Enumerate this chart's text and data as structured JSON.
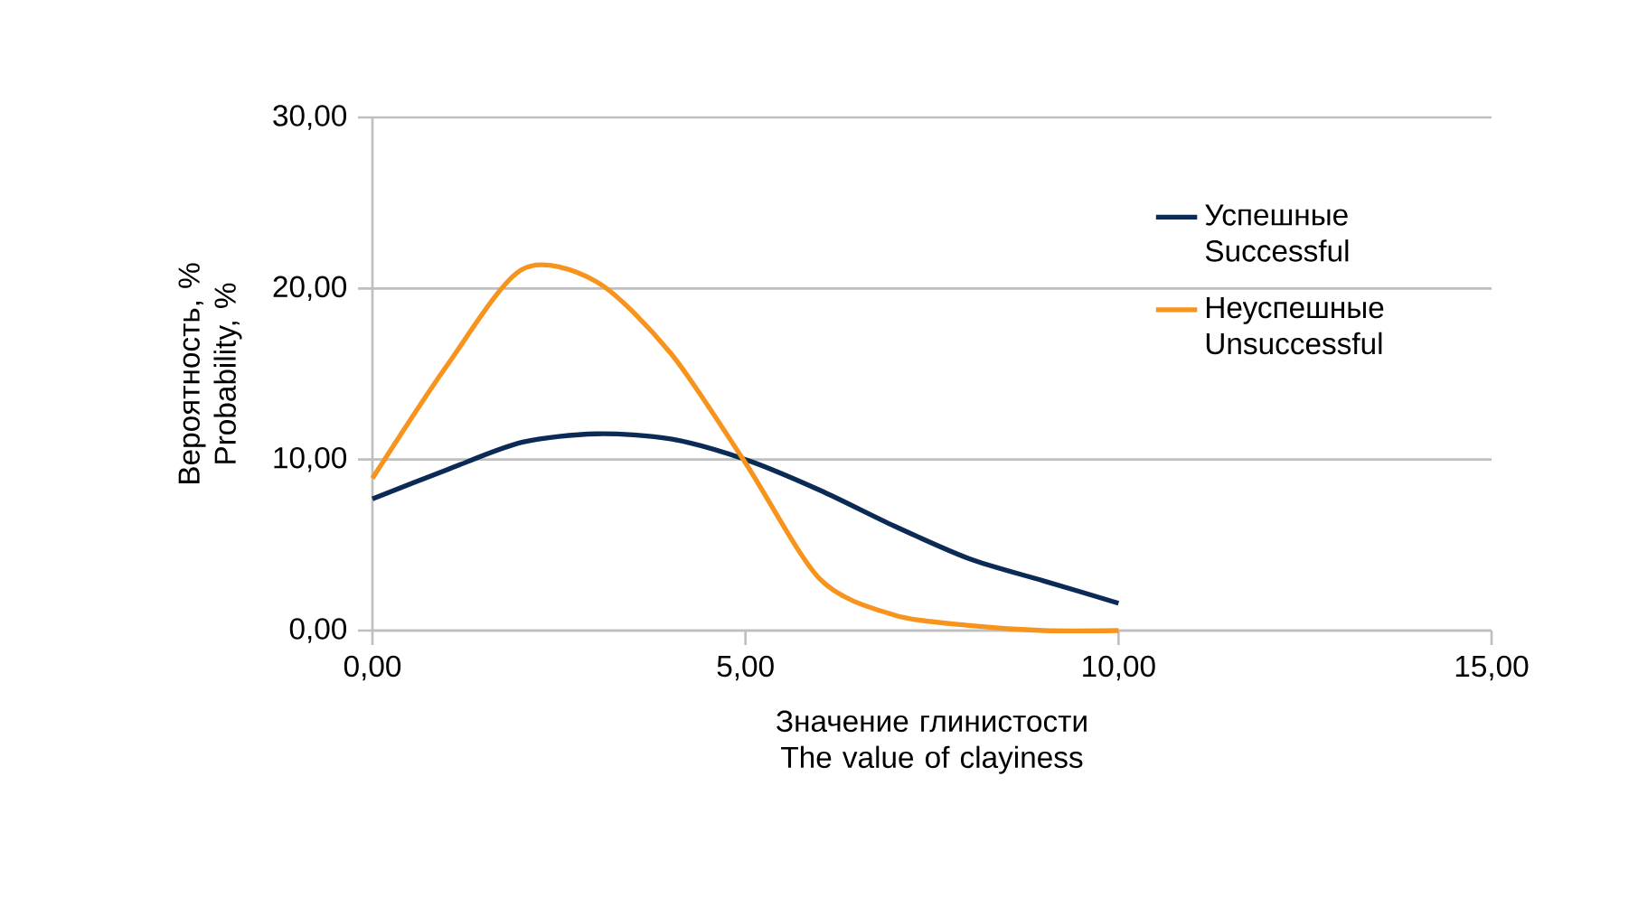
{
  "chart_data": {
    "type": "line",
    "xlabel": "Значение глинистости The value of clayiness",
    "ylabel": "Вероятность, % Probability, %",
    "x": [
      0,
      1,
      2,
      3,
      4,
      5,
      6,
      7,
      8,
      9,
      10
    ],
    "series": [
      {
        "name": "Успешные Successful",
        "color": "#0b2a55",
        "values": [
          7.7,
          9.4,
          11.0,
          11.5,
          11.2,
          10.0,
          8.2,
          6.1,
          4.2,
          2.9,
          1.6
        ]
      },
      {
        "name": "Неуспешные Unsuccessful",
        "color": "#f7941d",
        "values": [
          8.9,
          15.5,
          21.1,
          20.4,
          16.2,
          9.8,
          3.0,
          0.9,
          0.3,
          0,
          0
        ]
      }
    ],
    "xlim": [
      0,
      15
    ],
    "ylim": [
      0,
      30
    ],
    "xticks": [
      {
        "value": 0,
        "label": "0,00"
      },
      {
        "value": 5,
        "label": "5,00"
      },
      {
        "value": 10,
        "label": "10,00"
      },
      {
        "value": 15,
        "label": "15,00"
      }
    ],
    "yticks": [
      {
        "value": 0,
        "label": "0,00"
      },
      {
        "value": 10,
        "label": "10,00"
      },
      {
        "value": 20,
        "label": "20,00"
      },
      {
        "value": 30,
        "label": "30,00"
      }
    ],
    "grid": "y",
    "legend": "top right",
    "marker": "none",
    "line_style": "solid"
  }
}
